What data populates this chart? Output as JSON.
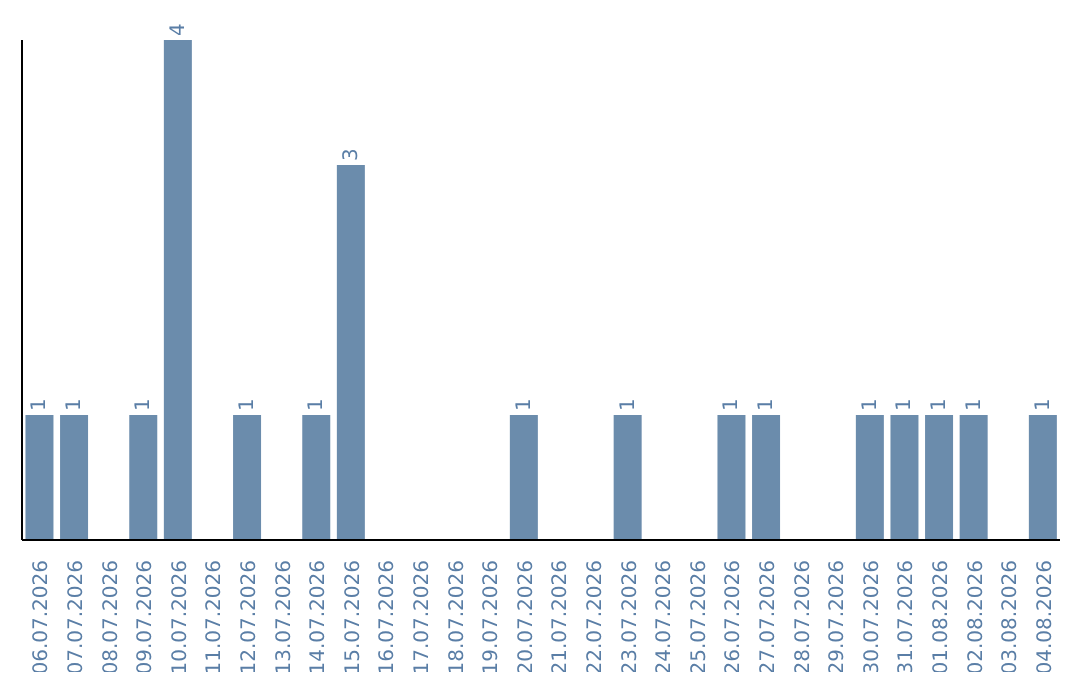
{
  "chart_data": {
    "type": "bar",
    "categories": [
      "06.07.2026",
      "07.07.2026",
      "08.07.2026",
      "09.07.2026",
      "10.07.2026",
      "11.07.2026",
      "12.07.2026",
      "13.07.2026",
      "14.07.2026",
      "15.07.2026",
      "16.07.2026",
      "17.07.2026",
      "18.07.2026",
      "19.07.2026",
      "20.07.2026",
      "21.07.2026",
      "22.07.2026",
      "23.07.2026",
      "24.07.2026",
      "25.07.2026",
      "26.07.2026",
      "27.07.2026",
      "28.07.2026",
      "29.07.2026",
      "30.07.2026",
      "31.07.2026",
      "01.08.2026",
      "02.08.2026",
      "03.08.2026",
      "04.08.2026"
    ],
    "values": [
      1,
      1,
      0,
      1,
      4,
      0,
      1,
      0,
      1,
      3,
      0,
      0,
      0,
      0,
      1,
      0,
      0,
      1,
      0,
      0,
      1,
      1,
      0,
      0,
      1,
      1,
      1,
      1,
      0,
      1
    ],
    "value_labels": [
      "1",
      "1",
      null,
      "1",
      "4",
      null,
      "1",
      null,
      "1",
      "3",
      null,
      null,
      null,
      null,
      "1",
      null,
      null,
      "1",
      null,
      null,
      "1",
      "1",
      null,
      null,
      "1",
      "1",
      "1",
      "1",
      null,
      "1"
    ],
    "color": "#6b8cac",
    "ylim": [
      0,
      4
    ],
    "tick_labels": "x"
  }
}
